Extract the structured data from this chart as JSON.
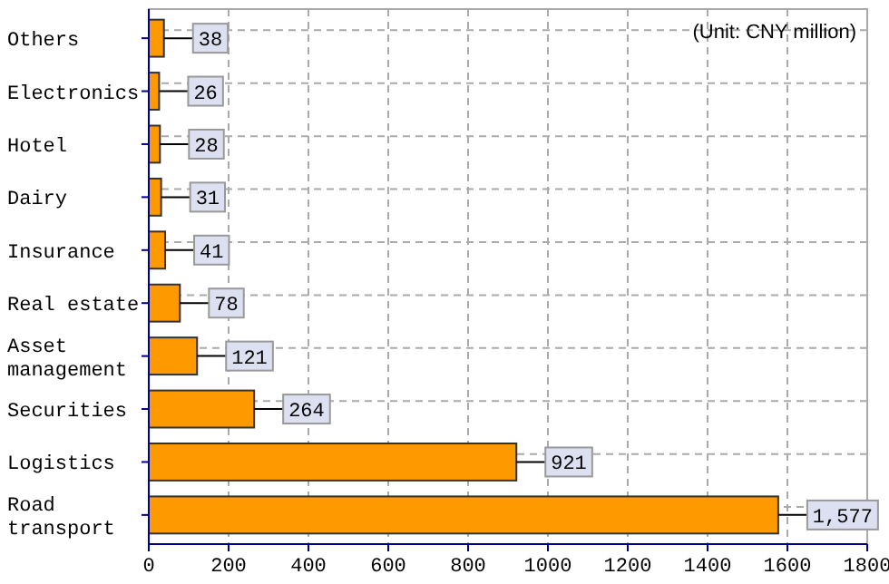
{
  "chart_data": {
    "type": "bar",
    "orientation": "horizontal",
    "categories": [
      "Others",
      "Electronics",
      "Hotel",
      "Dairy",
      "Insurance",
      "Real estate",
      "Asset management",
      "Securities",
      "Logistics",
      "Road transport"
    ],
    "values": [
      38,
      26,
      28,
      31,
      41,
      78,
      121,
      264,
      921,
      1577
    ],
    "value_labels": [
      "38",
      "26",
      "28",
      "31",
      "41",
      "78",
      "121",
      "264",
      "921",
      "1,577"
    ],
    "color": "#ff9900",
    "xlim": [
      0,
      1800
    ],
    "xticks": [
      0,
      200,
      400,
      600,
      800,
      1000,
      1200,
      1400,
      1600,
      1800
    ],
    "grid": true,
    "annotations": [
      "(Unit: CNY million)"
    ]
  }
}
